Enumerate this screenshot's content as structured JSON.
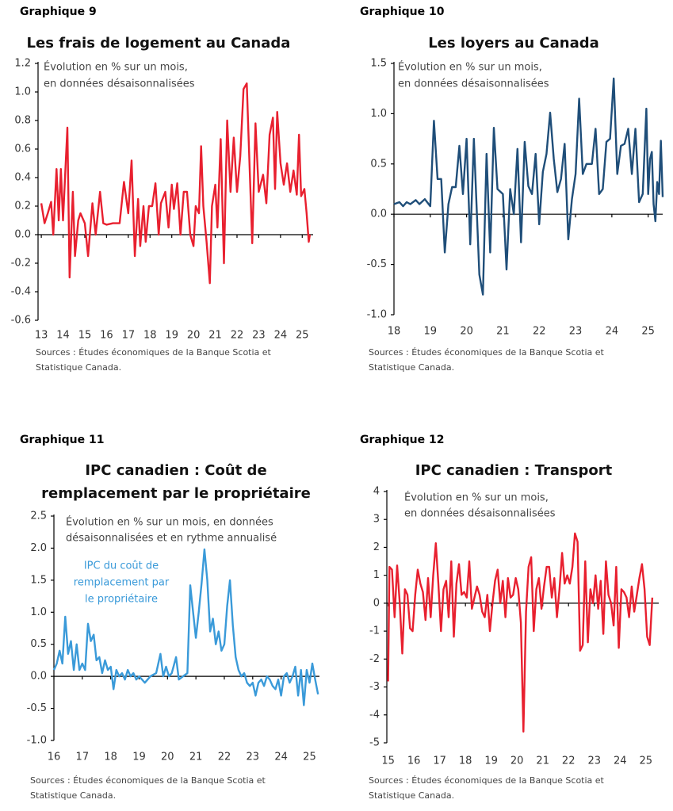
{
  "chart_data": [
    {
      "type": "line",
      "label": "Graphique 9",
      "title": [
        "Les frais de logement au Canada"
      ],
      "annotation": [
        "Évolution en % sur un mois,",
        "en données désaisonnalisées"
      ],
      "sources": [
        "Sources : Études économiques de la Banque Scotia et",
        "Statistique Canada."
      ],
      "color": "#e8202f",
      "xlim": [
        12.85,
        25.5
      ],
      "ylim": [
        -0.6,
        1.2
      ],
      "xticks": [
        13,
        14,
        15,
        16,
        17,
        18,
        19,
        20,
        21,
        22,
        23,
        24,
        25
      ],
      "yticks": [
        1.2,
        {
          "value": 1,
          "label": "1.0"
        },
        0.8,
        0.6,
        0.4,
        0.2,
        {
          "value": 0,
          "label": "0.0"
        },
        -0.2,
        -0.4,
        -0.6
      ],
      "x": [
        13.0,
        13.15,
        13.3,
        13.45,
        13.55,
        13.7,
        13.8,
        13.9,
        14.0,
        14.2,
        14.3,
        14.45,
        14.55,
        14.7,
        14.8,
        15.0,
        15.15,
        15.35,
        15.5,
        15.7,
        15.85,
        16.0,
        16.3,
        16.6,
        16.8,
        17.0,
        17.15,
        17.3,
        17.45,
        17.55,
        17.7,
        17.8,
        17.95,
        18.1,
        18.25,
        18.4,
        18.5,
        18.7,
        18.85,
        19.0,
        19.1,
        19.25,
        19.4,
        19.55,
        19.7,
        19.85,
        20.0,
        20.1,
        20.25,
        20.35,
        20.45,
        20.6,
        20.75,
        20.85,
        21.0,
        21.1,
        21.25,
        21.4,
        21.55,
        21.7,
        21.85,
        22.0,
        22.15,
        22.3,
        22.45,
        22.55,
        22.7,
        22.85,
        23.0,
        23.2,
        23.35,
        23.5,
        23.65,
        23.75,
        23.85,
        24.0,
        24.15,
        24.3,
        24.45,
        24.6,
        24.75,
        24.85,
        24.95,
        25.1,
        25.2,
        25.3,
        25.35
      ],
      "values": [
        0.22,
        0.08,
        0.15,
        0.23,
        0.0,
        0.46,
        0.1,
        0.46,
        0.1,
        0.75,
        -0.3,
        0.3,
        -0.15,
        0.1,
        0.15,
        0.08,
        -0.15,
        0.22,
        0.0,
        0.3,
        0.08,
        0.07,
        0.08,
        0.08,
        0.37,
        0.15,
        0.52,
        -0.15,
        0.25,
        -0.08,
        0.2,
        -0.05,
        0.2,
        0.2,
        0.36,
        0.0,
        0.22,
        0.3,
        0.05,
        0.35,
        0.18,
        0.36,
        0.0,
        0.3,
        0.3,
        0.0,
        -0.08,
        0.2,
        0.15,
        0.62,
        0.2,
        -0.05,
        -0.34,
        0.2,
        0.35,
        0.05,
        0.67,
        -0.2,
        0.8,
        0.3,
        0.68,
        0.3,
        0.55,
        1.02,
        1.06,
        0.6,
        -0.06,
        0.78,
        0.3,
        0.42,
        0.22,
        0.7,
        0.82,
        0.32,
        0.86,
        0.5,
        0.35,
        0.5,
        0.3,
        0.45,
        0.28,
        0.7,
        0.27,
        0.32,
        0.15,
        -0.05,
        0.0
      ]
    },
    {
      "type": "line",
      "label": "Graphique 10",
      "title": [
        "Les loyers au Canada"
      ],
      "annotation": [
        "Évolution en % sur un mois,",
        "en données désaisonnalisées"
      ],
      "sources": [
        "Sources : Études économiques de la Banque Scotia et",
        "Statistique Canada."
      ],
      "color": "#1f4e79",
      "xlim": [
        18,
        25.4
      ],
      "ylim": [
        -1,
        1.5
      ],
      "xticks": [
        18,
        19,
        20,
        21,
        22,
        23,
        24,
        25
      ],
      "yticks": [
        1.5,
        {
          "value": 1,
          "label": "1.0"
        },
        0.5,
        {
          "value": 0,
          "label": "0.0"
        },
        -0.5,
        {
          "value": -1,
          "label": "-1.0"
        }
      ],
      "x": [
        18.0,
        18.15,
        18.25,
        18.35,
        18.45,
        18.6,
        18.7,
        18.85,
        19.0,
        19.1,
        19.2,
        19.3,
        19.4,
        19.5,
        19.6,
        19.7,
        19.8,
        19.9,
        20.0,
        20.1,
        20.2,
        20.35,
        20.45,
        20.55,
        20.65,
        20.75,
        20.85,
        21.0,
        21.1,
        21.2,
        21.3,
        21.4,
        21.5,
        21.6,
        21.7,
        21.8,
        21.9,
        22.0,
        22.1,
        22.2,
        22.3,
        22.4,
        22.5,
        22.6,
        22.7,
        22.8,
        22.9,
        23.0,
        23.1,
        23.2,
        23.3,
        23.45,
        23.55,
        23.65,
        23.75,
        23.85,
        23.95,
        24.05,
        24.15,
        24.25,
        24.35,
        24.45,
        24.55,
        24.65,
        24.75,
        24.85,
        24.95,
        25.0,
        25.05,
        25.1,
        25.15,
        25.2,
        25.25,
        25.3,
        25.35,
        25.4
      ],
      "values": [
        0.1,
        0.12,
        0.08,
        0.12,
        0.1,
        0.14,
        0.1,
        0.15,
        0.08,
        0.93,
        0.35,
        0.35,
        -0.38,
        0.1,
        0.27,
        0.27,
        0.68,
        0.2,
        0.75,
        -0.3,
        0.75,
        -0.6,
        -0.8,
        0.6,
        -0.38,
        0.86,
        0.25,
        0.2,
        -0.55,
        0.25,
        0.0,
        0.65,
        -0.28,
        0.72,
        0.28,
        0.2,
        0.6,
        -0.1,
        0.42,
        0.6,
        1.01,
        0.55,
        0.22,
        0.35,
        0.7,
        -0.25,
        0.15,
        0.4,
        1.15,
        0.4,
        0.5,
        0.5,
        0.85,
        0.2,
        0.25,
        0.72,
        0.75,
        1.35,
        0.4,
        0.68,
        0.7,
        0.85,
        0.4,
        0.85,
        0.12,
        0.2,
        1.05,
        0.2,
        0.55,
        0.62,
        0.1,
        -0.07,
        0.32,
        0.2,
        0.73,
        0.17
      ]
    },
    {
      "type": "line",
      "label": "Graphique 11",
      "title": [
        "IPC canadien : Coût de",
        "remplacement par le propriétaire"
      ],
      "annotation": [
        "Évolution en % sur un mois, en données",
        "désaisonnalisées et en rythme annualisé"
      ],
      "series_label": [
        "IPC du coût de",
        "remplacement par",
        "le propriétaire"
      ],
      "sources": [
        "Sources : Études économiques de la Banque Scotia et",
        "Statistique Canada."
      ],
      "color": "#3a9ad9",
      "xlim": [
        16,
        25.35
      ],
      "ylim": [
        -1,
        2.5
      ],
      "xticks": [
        16,
        17,
        18,
        19,
        20,
        21,
        22,
        23,
        24,
        25
      ],
      "yticks": [
        2.5,
        {
          "value": 2,
          "label": "2.0"
        },
        1.5,
        {
          "value": 1,
          "label": "1.0"
        },
        0.5,
        {
          "value": 0,
          "label": "0.0"
        },
        -0.5,
        {
          "value": -1,
          "label": "-1.0"
        }
      ],
      "x": [
        16.0,
        16.1,
        16.2,
        16.3,
        16.4,
        16.5,
        16.6,
        16.7,
        16.8,
        16.9,
        17.0,
        17.1,
        17.2,
        17.3,
        17.4,
        17.5,
        17.6,
        17.7,
        17.8,
        17.9,
        18.0,
        18.1,
        18.2,
        18.3,
        18.4,
        18.5,
        18.6,
        18.7,
        18.8,
        18.9,
        19.0,
        19.2,
        19.4,
        19.6,
        19.75,
        19.85,
        19.95,
        20.05,
        20.15,
        20.3,
        20.4,
        20.55,
        20.7,
        20.8,
        20.9,
        21.0,
        21.1,
        21.2,
        21.3,
        21.4,
        21.5,
        21.6,
        21.7,
        21.8,
        21.9,
        22.0,
        22.1,
        22.2,
        22.3,
        22.4,
        22.5,
        22.6,
        22.7,
        22.8,
        22.9,
        23.0,
        23.1,
        23.2,
        23.3,
        23.4,
        23.5,
        23.6,
        23.7,
        23.8,
        23.9,
        24.0,
        24.1,
        24.2,
        24.3,
        24.4,
        24.5,
        24.6,
        24.7,
        24.8,
        24.9,
        25.0,
        25.1,
        25.2,
        25.3
      ],
      "values": [
        0.1,
        0.2,
        0.4,
        0.2,
        0.93,
        0.35,
        0.55,
        0.1,
        0.5,
        0.1,
        0.2,
        0.1,
        0.82,
        0.55,
        0.65,
        0.25,
        0.3,
        0.05,
        0.25,
        0.1,
        0.15,
        -0.2,
        0.1,
        0.0,
        0.05,
        -0.05,
        0.1,
        0.0,
        0.05,
        -0.05,
        0.0,
        -0.1,
        0.0,
        0.05,
        0.35,
        0.0,
        0.15,
        0.0,
        0.05,
        0.3,
        -0.05,
        0.0,
        0.05,
        1.42,
        1.0,
        0.6,
        1.0,
        1.45,
        1.98,
        1.5,
        0.7,
        0.9,
        0.5,
        0.7,
        0.4,
        0.5,
        1.1,
        1.5,
        0.8,
        0.3,
        0.1,
        0.0,
        0.05,
        -0.1,
        -0.15,
        -0.1,
        -0.3,
        -0.1,
        -0.05,
        -0.15,
        0.0,
        -0.05,
        -0.15,
        -0.2,
        -0.05,
        -0.3,
        0.0,
        0.05,
        -0.1,
        0.0,
        0.15,
        -0.3,
        0.1,
        -0.45,
        0.1,
        -0.1,
        0.2,
        -0.05,
        -0.28
      ]
    },
    {
      "type": "line",
      "label": "Graphique 12",
      "title": [
        "IPC canadien : Transport"
      ],
      "annotation": [
        "Évolution en % sur un mois,",
        "en données désaisonnalisées"
      ],
      "sources": [
        "Sources : Études économiques de la Banque Scotia et",
        "Statistique Canada."
      ],
      "color": "#e8202f",
      "xlim": [
        14.95,
        25.5
      ],
      "ylim": [
        -5,
        4
      ],
      "xticks": [
        15,
        16,
        17,
        18,
        19,
        20,
        21,
        22,
        23,
        24,
        25
      ],
      "yticks": [
        4,
        3,
        2,
        1,
        0,
        -1,
        -2,
        -3,
        -4,
        -5
      ],
      "x": [
        15.0,
        15.05,
        15.15,
        15.25,
        15.35,
        15.45,
        15.55,
        15.65,
        15.75,
        15.85,
        15.95,
        16.05,
        16.15,
        16.25,
        16.35,
        16.45,
        16.55,
        16.65,
        16.75,
        16.85,
        16.95,
        17.05,
        17.15,
        17.25,
        17.35,
        17.45,
        17.55,
        17.65,
        17.75,
        17.85,
        17.95,
        18.05,
        18.15,
        18.25,
        18.35,
        18.45,
        18.55,
        18.65,
        18.75,
        18.85,
        18.95,
        19.05,
        19.15,
        19.25,
        19.35,
        19.45,
        19.55,
        19.65,
        19.75,
        19.85,
        19.95,
        20.05,
        20.15,
        20.25,
        20.35,
        20.45,
        20.55,
        20.65,
        20.75,
        20.85,
        20.95,
        21.05,
        21.15,
        21.25,
        21.35,
        21.45,
        21.55,
        21.65,
        21.75,
        21.85,
        21.95,
        22.05,
        22.15,
        22.25,
        22.35,
        22.45,
        22.55,
        22.65,
        22.75,
        22.85,
        22.95,
        23.05,
        23.15,
        23.25,
        23.35,
        23.45,
        23.55,
        23.65,
        23.75,
        23.85,
        23.95,
        24.05,
        24.15,
        24.25,
        24.35,
        24.45,
        24.55,
        24.65,
        24.75,
        24.85,
        24.95,
        25.05,
        25.15,
        25.25
      ],
      "values": [
        -2.8,
        1.3,
        1.2,
        -0.5,
        1.35,
        0.0,
        -1.8,
        0.5,
        0.3,
        -0.9,
        -1.0,
        0.3,
        1.2,
        0.7,
        0.4,
        -0.6,
        0.9,
        -0.5,
        1.0,
        2.15,
        0.7,
        -1.0,
        0.5,
        0.8,
        -0.5,
        1.5,
        -1.2,
        0.7,
        1.4,
        0.3,
        0.4,
        0.2,
        1.5,
        -0.2,
        0.2,
        0.6,
        0.3,
        -0.3,
        -0.5,
        0.3,
        -1.0,
        0.0,
        0.8,
        1.2,
        0.0,
        0.8,
        -0.5,
        0.9,
        0.2,
        0.3,
        0.9,
        0.5,
        -0.7,
        -4.6,
        -0.3,
        1.3,
        1.65,
        -1.0,
        0.5,
        0.9,
        -0.2,
        0.6,
        1.3,
        1.3,
        0.2,
        0.9,
        -0.5,
        0.5,
        1.8,
        0.7,
        1.0,
        0.7,
        1.3,
        2.5,
        2.2,
        -1.7,
        -1.5,
        1.5,
        -1.4,
        0.5,
        0.0,
        1.0,
        -0.2,
        0.8,
        -1.1,
        1.5,
        0.3,
        0.0,
        -0.8,
        1.3,
        -1.6,
        0.5,
        0.4,
        0.2,
        -0.5,
        0.6,
        -0.3,
        0.3,
        0.9,
        1.4,
        0.5,
        -1.2,
        -1.5,
        0.2
      ]
    }
  ]
}
